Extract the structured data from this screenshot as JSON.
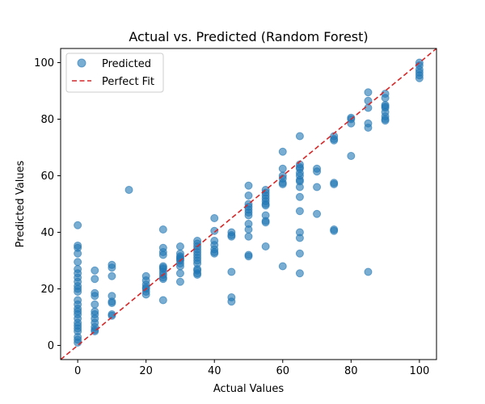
{
  "chart_data": {
    "type": "scatter",
    "title": "Actual vs. Predicted (Random Forest)",
    "xlabel": "Actual Values",
    "ylabel": "Predicted Values",
    "xlim": [
      -5,
      105
    ],
    "ylim": [
      -5,
      105
    ],
    "xticks": [
      0,
      20,
      40,
      60,
      80,
      100
    ],
    "yticks": [
      0,
      20,
      40,
      60,
      80,
      100
    ],
    "grid": false,
    "legend_position": "top-left",
    "series": [
      {
        "name": "Predicted",
        "kind": "points",
        "color": "#1f77b4",
        "alpha": 0.6,
        "points": [
          [
            0,
            42.5
          ],
          [
            0,
            35.3
          ],
          [
            0,
            34.5
          ],
          [
            0,
            32.5
          ],
          [
            0,
            29.5
          ],
          [
            0,
            27
          ],
          [
            0,
            25.5
          ],
          [
            0,
            24
          ],
          [
            0,
            22.5
          ],
          [
            0,
            21
          ],
          [
            0,
            20
          ],
          [
            0,
            19
          ],
          [
            0,
            16
          ],
          [
            0,
            14.5
          ],
          [
            0,
            13
          ],
          [
            0,
            12
          ],
          [
            0,
            11
          ],
          [
            0,
            9.5
          ],
          [
            0,
            8
          ],
          [
            0,
            7
          ],
          [
            0,
            6
          ],
          [
            0,
            5
          ],
          [
            0,
            3
          ],
          [
            0,
            2
          ],
          [
            0,
            1
          ],
          [
            5,
            26.5
          ],
          [
            5,
            23.5
          ],
          [
            5,
            18.5
          ],
          [
            5,
            17.5
          ],
          [
            5,
            14.5
          ],
          [
            5,
            12
          ],
          [
            5,
            11
          ],
          [
            5,
            9.5
          ],
          [
            5,
            8
          ],
          [
            5,
            6.5
          ],
          [
            5,
            5.5
          ],
          [
            5,
            5
          ],
          [
            10,
            28.5
          ],
          [
            10,
            27.5
          ],
          [
            10,
            24.5
          ],
          [
            10,
            17.5
          ],
          [
            10,
            15.5
          ],
          [
            10,
            15
          ],
          [
            10,
            11
          ],
          [
            10,
            10.5
          ],
          [
            15,
            55
          ],
          [
            20,
            24.5
          ],
          [
            20,
            23
          ],
          [
            20,
            21.5
          ],
          [
            20,
            20.5
          ],
          [
            20,
            20
          ],
          [
            20,
            19
          ],
          [
            20,
            18
          ],
          [
            25,
            41
          ],
          [
            25,
            34.5
          ],
          [
            25,
            33
          ],
          [
            25,
            32
          ],
          [
            25,
            28
          ],
          [
            25,
            27.5
          ],
          [
            25,
            27
          ],
          [
            25,
            26
          ],
          [
            25,
            25
          ],
          [
            25,
            24
          ],
          [
            25,
            23.5
          ],
          [
            25,
            16
          ],
          [
            30,
            35
          ],
          [
            30,
            32.5
          ],
          [
            30,
            31.5
          ],
          [
            30,
            31
          ],
          [
            30,
            30.5
          ],
          [
            30,
            30
          ],
          [
            30,
            29
          ],
          [
            30,
            28
          ],
          [
            30,
            25.5
          ],
          [
            30,
            22.5
          ],
          [
            35,
            37
          ],
          [
            35,
            36
          ],
          [
            35,
            35
          ],
          [
            35,
            34
          ],
          [
            35,
            33
          ],
          [
            35,
            32
          ],
          [
            35,
            31
          ],
          [
            35,
            30
          ],
          [
            35,
            29
          ],
          [
            35,
            27
          ],
          [
            35,
            26.5
          ],
          [
            35,
            25.5
          ],
          [
            35,
            25
          ],
          [
            40,
            45
          ],
          [
            40,
            40.5
          ],
          [
            40,
            37
          ],
          [
            40,
            35.5
          ],
          [
            40,
            34
          ],
          [
            40,
            33
          ],
          [
            40,
            32.5
          ],
          [
            45,
            40
          ],
          [
            45,
            39
          ],
          [
            45,
            38.5
          ],
          [
            45,
            26
          ],
          [
            45,
            17
          ],
          [
            45,
            15.5
          ],
          [
            50,
            56.5
          ],
          [
            50,
            53
          ],
          [
            50,
            50
          ],
          [
            50,
            49
          ],
          [
            50,
            48
          ],
          [
            50,
            47
          ],
          [
            50,
            46
          ],
          [
            50,
            43
          ],
          [
            50,
            41
          ],
          [
            50,
            38.5
          ],
          [
            50,
            32
          ],
          [
            50,
            31.5
          ],
          [
            55,
            55
          ],
          [
            55,
            54
          ],
          [
            55,
            53
          ],
          [
            55,
            52
          ],
          [
            55,
            51
          ],
          [
            55,
            50
          ],
          [
            55,
            49.5
          ],
          [
            55,
            46
          ],
          [
            55,
            44
          ],
          [
            55,
            43.5
          ],
          [
            55,
            35
          ],
          [
            60,
            68.5
          ],
          [
            60,
            62.5
          ],
          [
            60,
            60
          ],
          [
            60,
            59
          ],
          [
            60,
            57.5
          ],
          [
            60,
            57
          ],
          [
            60,
            28
          ],
          [
            65,
            74
          ],
          [
            65,
            64
          ],
          [
            65,
            63
          ],
          [
            65,
            62.5
          ],
          [
            65,
            61
          ],
          [
            65,
            60
          ],
          [
            65,
            58.5
          ],
          [
            65,
            58
          ],
          [
            65,
            56
          ],
          [
            65,
            52.5
          ],
          [
            65,
            47.5
          ],
          [
            65,
            40
          ],
          [
            65,
            38
          ],
          [
            65,
            32.5
          ],
          [
            65,
            25.5
          ],
          [
            70,
            62.5
          ],
          [
            70,
            61.5
          ],
          [
            70,
            56
          ],
          [
            70,
            46.5
          ],
          [
            75,
            74
          ],
          [
            75,
            73
          ],
          [
            75,
            72.5
          ],
          [
            75,
            57.5
          ],
          [
            75,
            57
          ],
          [
            75,
            41
          ],
          [
            75,
            40.5
          ],
          [
            80,
            80.5
          ],
          [
            80,
            80
          ],
          [
            80,
            78.5
          ],
          [
            80,
            67
          ],
          [
            85,
            89.5
          ],
          [
            85,
            86.5
          ],
          [
            85,
            84
          ],
          [
            85,
            78.5
          ],
          [
            85,
            77
          ],
          [
            85,
            26
          ],
          [
            90,
            89
          ],
          [
            90,
            87.5
          ],
          [
            90,
            85
          ],
          [
            90,
            84.5
          ],
          [
            90,
            84
          ],
          [
            90,
            82.5
          ],
          [
            90,
            81
          ],
          [
            90,
            80
          ],
          [
            90,
            79.5
          ],
          [
            100,
            100
          ],
          [
            100,
            99
          ],
          [
            100,
            97.5
          ],
          [
            100,
            96.5
          ],
          [
            100,
            95.5
          ],
          [
            100,
            94.5
          ]
        ]
      },
      {
        "name": "Perfect Fit",
        "kind": "line",
        "color": "#d62728",
        "dash": "dashed",
        "x": [
          -5,
          105
        ],
        "y": [
          -5,
          105
        ]
      }
    ]
  }
}
